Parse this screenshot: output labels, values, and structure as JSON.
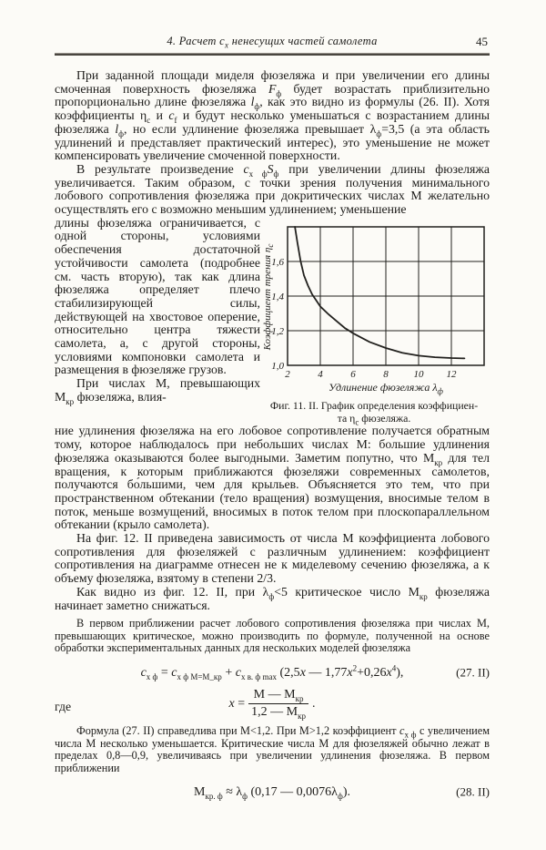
{
  "header": {
    "running_head": "4. Расчет ~{с}_{х} ненесущих частей самолета",
    "page_number": "45"
  },
  "paragraphs": {
    "p1": "При заданной площади миделя фюзеляжа и при увеличении его длины смоченная поверхность фюзеляжа ~{F}_{ф} будет возрастать приблизительно пропорционально длине фюзеляжа ~{l}_{ф}, как это видно из формулы (26. II). Хотя коэффициенты η_{с} и ~{с}_{f} и будут несколько уменьшаться с возрастанием длины фюзеляжа ~{l}_{ф}, но если удлинение фюзеляжа превышает λ_{ф}=3,5 (а эта область удлинений и представляет практический интерес), это уменьшение не может компенсировать увеличение смоченной поверхности.",
    "p2a": "В результате произведение ~{с}_{х ф}~{S}_{ф} при увеличении длины фюзеляжа увеличивается. Таким образом, с точки зрения получения минимального лобового сопротивления фюзеляжа при докритических числах М желательно осуществлять его с возможно меньшим удлинением; уменьшение",
    "p2b": "длины фюзеляжа ограничивается, с одной стороны, условиями обеспечения достаточной устойчивости самолета (подробнее см. часть вторую), так как длина фюзеляжа определяет плечо стабилизирующей силы, действующей на хвостовое оперение, относительно центра тяжести самолета, а, с другой стороны, условиями компоновки самолета и размещения в фюзеляже грузов.",
    "p3a": "При числах М, превышающих М_{кр} фюзеляжа, влия-",
    "p3b": "ние удлинения фюзеляжа на его лобовое сопротивление получается обратным тому, которое наблюдалось при небольших числах М: большие удлинения фюзеляжа оказываются более выгодными. Заметим попутно, что М_{кр} для тел вращения, к которым приближаются фюзеляжи современных самолетов, получаются бо́льшими, чем для крыльев. Объясняется это тем, что при пространственном обтекании (тело вращения) возмущения, вносимые телом в поток, меньше возмущений, вносимых в поток телом при плоскопараллельном обтекании (крыло самолета).",
    "p4": "На фиг. 12. II приведена зависимость от числа М коэффициента лобового сопротивления для фюзеляжей с различным удлинением: коэффициент сопротивления на диаграмме отнесен не к миделевому сечению фюзеляжа, а к объему фюзеляжа, взятому в степени 2/3.",
    "p5": "Как видно из фиг. 12. II, при λ_{ф}<5 критическое число М_{кр} фюзеляжа начинает заметно снижаться.",
    "p6": "В первом приближении расчет лобового сопротивления фюзеляжа при числах М, превышающих критическое, можно производить по формуле, полученной на основе обработки экспериментальных данных для нескольких моделей фюзеляжа",
    "p7": "Формула (27. II) справедлива при М<1,2. При М>1,2 коэффициент ~{с}_{х ф} с увеличением числа М несколько уменьшается. Критические числа М для фюзеляжей обычно лежат в пределах 0,8—0,9, увеличиваясь при увеличении удлинения фюзеляжа. В первом приближении"
  },
  "formulas": {
    "f27": {
      "body": "~{с}_{х ф} = ~{с}_{х ф М=М_кр} + ~{с}_{х в. ф max} (2,5~{x} — 1,77~{x}^{2}+0,26~{x}^{4}),",
      "label": "(27. II)"
    },
    "where_word": "где",
    "f_where": {
      "lhs": "~{x} = ",
      "numerator": "М — М_{кр}",
      "denominator": "1,2 — М_{кр}",
      "tail": " ."
    },
    "f28": {
      "body": "М_{кр. ф} ≈ λ_{ф} (0,17 — 0,0076λ_{ф}).",
      "label": "(28. II)"
    }
  },
  "figure": {
    "caption_line1": "Фиг. 11. II. График определения коэффициен-",
    "caption_line2": "та η_{с} фюзеляжа."
  },
  "chart_data": {
    "type": "line",
    "title": "Фиг. 11. II. График определения коэффициента η_с фюзеляжа",
    "xlabel": "Удлинение фюзеляжа λ_{ф}",
    "ylabel": "Коэффициент трения η_{с}",
    "xlim": [
      2,
      14
    ],
    "ylim": [
      1.0,
      1.8
    ],
    "grid": true,
    "legend": "none",
    "x_ticks": [
      "2",
      "4",
      "6",
      "8",
      "10",
      "12"
    ],
    "x_tick_values": [
      2,
      4,
      6,
      8,
      10,
      12
    ],
    "y_ticks": [
      "1,0",
      "1,2",
      "1,4",
      "1,6"
    ],
    "y_tick_values": [
      1.0,
      1.2,
      1.4,
      1.6
    ],
    "x_grid": [
      4,
      6,
      8,
      10,
      12
    ],
    "y_grid": [
      1.2,
      1.4,
      1.6
    ],
    "series": [
      {
        "name": "η_с фюзеляжа",
        "x": [
          2.45,
          2.6,
          2.8,
          3.0,
          3.25,
          3.5,
          4.0,
          4.5,
          5.0,
          5.5,
          6.0,
          6.5,
          7.0,
          8.0,
          9.0,
          10.0,
          11.0,
          12.0,
          12.8
        ],
        "y": [
          1.8,
          1.71,
          1.6,
          1.52,
          1.46,
          1.41,
          1.34,
          1.295,
          1.255,
          1.215,
          1.185,
          1.16,
          1.135,
          1.1,
          1.072,
          1.056,
          1.047,
          1.042,
          1.04
        ]
      }
    ]
  },
  "colors": {
    "ink": "#1c1b19",
    "chart_line": "#22211e",
    "paper": "#fcfbf7"
  }
}
